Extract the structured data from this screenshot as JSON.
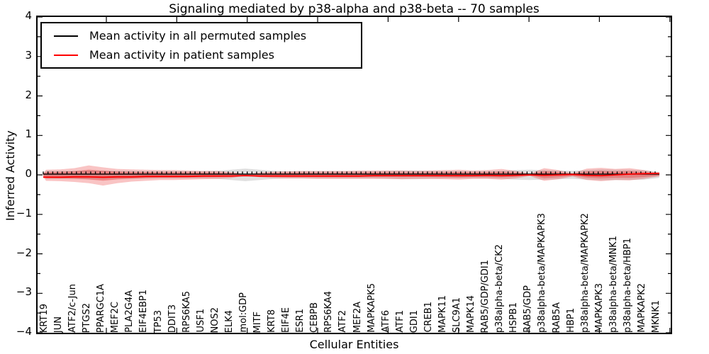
{
  "figure": {
    "title": "Signaling mediated by p38-alpha and p38-beta -- 70 samples",
    "xlabel": "Cellular Entities",
    "ylabel": "Inferred Activity"
  },
  "legend": {
    "entries": [
      {
        "label": "Mean activity in all permuted samples",
        "color": "#000000"
      },
      {
        "label": "Mean activity in patient samples",
        "color": "#ff0000"
      }
    ]
  },
  "chart_data": {
    "type": "line",
    "title": "Signaling mediated by p38-alpha and p38-beta -- 70 samples",
    "xlabel": "Cellular Entities",
    "ylabel": "Inferred Activity",
    "ylim": [
      -4,
      4
    ],
    "ytick_labels": [
      "4",
      "3",
      "2",
      "1",
      "0",
      "−1",
      "−2",
      "−3",
      "−4"
    ],
    "ytick_values": [
      4,
      3,
      2,
      1,
      0,
      -1,
      -2,
      -3,
      -4
    ],
    "ytick_minor_step": 0.5,
    "grid": false,
    "legend_position": "upper left",
    "categories": [
      "KRT19",
      "JUN",
      "ATF2/c-Jun",
      "PTGS2",
      "PPARGC1A",
      "MEF2C",
      "PLA2G4A",
      "EIF4EBP1",
      "TP53",
      "DDIT3",
      "RPS6KA5",
      "USF1",
      "NOS2",
      "ELK4",
      "mol:GDP",
      "MITF",
      "KRT8",
      "EIF4E",
      "ESR1",
      "CEBPB",
      "RPS6KA4",
      "ATF2",
      "MEF2A",
      "MAPKAPK5",
      "ATF6",
      "ATF1",
      "GDI1",
      "CREB1",
      "MAPK11",
      "SLC9A1",
      "MAPK14",
      "RAB5/GDP/GDI1",
      "p38alpha-beta/CK2",
      "HSPB1",
      "RAB5/GDP",
      "p38alpha-beta/MAPKAPK3",
      "RAB5A",
      "HBP1",
      "p38alpha-beta/MAPKAPK2",
      "MAPKAPK3",
      "p38alpha-beta/MNK1",
      "p38alpha-beta/HBP1",
      "MAPKAPK2",
      "MKNK1"
    ],
    "series": [
      {
        "name": "Mean activity in all permuted samples",
        "color": "#000000",
        "style": "solid line with small point markers near zero",
        "constant_value": 0.02
      },
      {
        "name": "Mean activity in patient samples",
        "color": "#ff0000",
        "values": [
          -0.06,
          -0.06,
          -0.05,
          -0.05,
          -0.06,
          -0.05,
          -0.05,
          -0.04,
          -0.04,
          -0.04,
          -0.04,
          -0.03,
          -0.03,
          -0.03,
          -0.02,
          -0.03,
          -0.03,
          -0.03,
          -0.03,
          -0.03,
          -0.03,
          -0.03,
          -0.03,
          -0.02,
          -0.02,
          -0.02,
          -0.02,
          -0.02,
          -0.02,
          -0.02,
          -0.02,
          -0.01,
          -0.02,
          -0.01,
          0.0,
          -0.01,
          0.0,
          0.01,
          -0.01,
          -0.02,
          0.0,
          0.02,
          0.03,
          0.04
        ]
      }
    ],
    "bands": [
      {
        "name": "permuted-samples-spread",
        "color": "rgba(110,110,110,0.22)",
        "hi": [
          0.1,
          0.1,
          0.1,
          0.11,
          0.11,
          0.1,
          0.1,
          0.09,
          0.09,
          0.09,
          0.09,
          0.09,
          0.1,
          0.13,
          0.16,
          0.13,
          0.1,
          0.09,
          0.09,
          0.09,
          0.09,
          0.09,
          0.09,
          0.09,
          0.1,
          0.11,
          0.11,
          0.1,
          0.09,
          0.09,
          0.09,
          0.09,
          0.1,
          0.12,
          0.13,
          0.12,
          0.11,
          0.1,
          0.12,
          0.14,
          0.13,
          0.13,
          0.12,
          0.08
        ],
        "lo": [
          -0.1,
          -0.1,
          -0.1,
          -0.11,
          -0.11,
          -0.1,
          -0.1,
          -0.09,
          -0.09,
          -0.09,
          -0.09,
          -0.09,
          -0.1,
          -0.13,
          -0.16,
          -0.13,
          -0.1,
          -0.09,
          -0.09,
          -0.09,
          -0.09,
          -0.09,
          -0.09,
          -0.09,
          -0.1,
          -0.11,
          -0.11,
          -0.1,
          -0.09,
          -0.09,
          -0.09,
          -0.09,
          -0.1,
          -0.12,
          -0.13,
          -0.12,
          -0.11,
          -0.1,
          -0.12,
          -0.14,
          -0.13,
          -0.13,
          -0.12,
          -0.08
        ]
      },
      {
        "name": "patient-samples-spread-outer",
        "color": "rgba(235,60,60,0.30)",
        "hi": [
          0.13,
          0.14,
          0.17,
          0.24,
          0.19,
          0.15,
          0.14,
          0.13,
          0.12,
          0.12,
          0.11,
          0.1,
          0.1,
          0.07,
          0.02,
          0.06,
          0.08,
          0.09,
          0.1,
          0.1,
          0.1,
          0.1,
          0.11,
          0.11,
          0.11,
          0.11,
          0.1,
          0.11,
          0.12,
          0.13,
          0.11,
          0.12,
          0.15,
          0.1,
          0.03,
          0.17,
          0.12,
          0.04,
          0.16,
          0.18,
          0.15,
          0.17,
          0.12,
          0.05
        ],
        "lo": [
          -0.15,
          -0.16,
          -0.18,
          -0.21,
          -0.27,
          -0.21,
          -0.17,
          -0.15,
          -0.13,
          -0.13,
          -0.12,
          -0.11,
          -0.1,
          -0.08,
          -0.02,
          -0.06,
          -0.08,
          -0.09,
          -0.09,
          -0.1,
          -0.1,
          -0.1,
          -0.1,
          -0.1,
          -0.1,
          -0.11,
          -0.1,
          -0.1,
          -0.11,
          -0.12,
          -0.1,
          -0.1,
          -0.12,
          -0.09,
          -0.03,
          -0.15,
          -0.11,
          -0.04,
          -0.13,
          -0.16,
          -0.13,
          -0.14,
          -0.1,
          -0.04
        ]
      },
      {
        "name": "patient-samples-spread-inner",
        "color": "rgba(225,45,45,0.35)",
        "scale_of_outer": 0.55
      }
    ]
  }
}
